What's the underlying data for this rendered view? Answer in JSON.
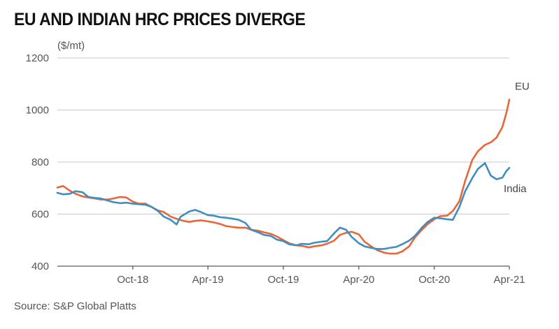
{
  "chart_data": {
    "type": "line",
    "title": "EU AND INDIAN HRC PRICES DIVERGE",
    "ylabel": "($/mt)",
    "xlabel": "",
    "source": "Source: S&P Global Platts",
    "ylim": [
      400,
      1200
    ],
    "yticks": [
      "400",
      "600",
      "800",
      "1000",
      "1200"
    ],
    "xlim": [
      "2018-04-01",
      "2021-04-01"
    ],
    "xticks": [
      {
        "label": "Oct-18",
        "date": "2018-10-01"
      },
      {
        "label": "Apr-19",
        "date": "2019-04-01"
      },
      {
        "label": "Oct-19",
        "date": "2019-10-01"
      },
      {
        "label": "Apr-20",
        "date": "2020-04-01"
      },
      {
        "label": "Oct-20",
        "date": "2020-10-01"
      },
      {
        "label": "Apr-21",
        "date": "2021-04-01"
      }
    ],
    "grid": "horizontal",
    "series": [
      {
        "name": "EU",
        "color": "#e8663a",
        "points": [
          [
            "2018-04-01",
            702
          ],
          [
            "2018-04-15",
            708
          ],
          [
            "2018-05-01",
            690
          ],
          [
            "2018-05-15",
            678
          ],
          [
            "2018-06-01",
            668
          ],
          [
            "2018-06-15",
            664
          ],
          [
            "2018-07-01",
            660
          ],
          [
            "2018-07-15",
            656
          ],
          [
            "2018-08-01",
            656
          ],
          [
            "2018-08-15",
            660
          ],
          [
            "2018-09-01",
            666
          ],
          [
            "2018-09-15",
            664
          ],
          [
            "2018-10-01",
            648
          ],
          [
            "2018-10-15",
            640
          ],
          [
            "2018-11-01",
            640
          ],
          [
            "2018-11-15",
            628
          ],
          [
            "2018-12-01",
            614
          ],
          [
            "2018-12-15",
            608
          ],
          [
            "2019-01-01",
            590
          ],
          [
            "2019-01-15",
            582
          ],
          [
            "2019-02-01",
            574
          ],
          [
            "2019-02-15",
            570
          ],
          [
            "2019-03-01",
            574
          ],
          [
            "2019-03-15",
            576
          ],
          [
            "2019-04-01",
            572
          ],
          [
            "2019-04-15",
            568
          ],
          [
            "2019-05-01",
            562
          ],
          [
            "2019-05-15",
            554
          ],
          [
            "2019-06-01",
            550
          ],
          [
            "2019-06-15",
            548
          ],
          [
            "2019-07-01",
            548
          ],
          [
            "2019-07-15",
            540
          ],
          [
            "2019-08-01",
            536
          ],
          [
            "2019-08-15",
            530
          ],
          [
            "2019-09-01",
            524
          ],
          [
            "2019-09-15",
            514
          ],
          [
            "2019-10-01",
            500
          ],
          [
            "2019-10-15",
            488
          ],
          [
            "2019-11-01",
            480
          ],
          [
            "2019-11-15",
            478
          ],
          [
            "2019-12-01",
            472
          ],
          [
            "2019-12-15",
            476
          ],
          [
            "2020-01-01",
            480
          ],
          [
            "2020-01-15",
            486
          ],
          [
            "2020-02-01",
            498
          ],
          [
            "2020-02-15",
            520
          ],
          [
            "2020-03-01",
            528
          ],
          [
            "2020-03-15",
            532
          ],
          [
            "2020-04-01",
            522
          ],
          [
            "2020-04-15",
            494
          ],
          [
            "2020-05-01",
            476
          ],
          [
            "2020-05-15",
            462
          ],
          [
            "2020-06-01",
            452
          ],
          [
            "2020-06-15",
            448
          ],
          [
            "2020-07-01",
            448
          ],
          [
            "2020-07-15",
            456
          ],
          [
            "2020-08-01",
            476
          ],
          [
            "2020-08-15",
            510
          ],
          [
            "2020-09-01",
            540
          ],
          [
            "2020-09-15",
            562
          ],
          [
            "2020-10-01",
            580
          ],
          [
            "2020-10-15",
            592
          ],
          [
            "2020-11-01",
            594
          ],
          [
            "2020-11-15",
            612
          ],
          [
            "2020-12-01",
            650
          ],
          [
            "2020-12-15",
            728
          ],
          [
            "2021-01-01",
            808
          ],
          [
            "2021-01-15",
            842
          ],
          [
            "2021-02-01",
            866
          ],
          [
            "2021-02-15",
            876
          ],
          [
            "2021-03-01",
            894
          ],
          [
            "2021-03-15",
            934
          ],
          [
            "2021-03-25",
            990
          ],
          [
            "2021-04-01",
            1040
          ]
        ]
      },
      {
        "name": "India",
        "color": "#3f8ec0",
        "points": [
          [
            "2018-04-01",
            682
          ],
          [
            "2018-04-15",
            676
          ],
          [
            "2018-05-01",
            678
          ],
          [
            "2018-05-15",
            688
          ],
          [
            "2018-06-01",
            684
          ],
          [
            "2018-06-15",
            666
          ],
          [
            "2018-07-01",
            662
          ],
          [
            "2018-07-15",
            660
          ],
          [
            "2018-08-01",
            652
          ],
          [
            "2018-08-15",
            646
          ],
          [
            "2018-09-01",
            642
          ],
          [
            "2018-09-15",
            644
          ],
          [
            "2018-10-01",
            640
          ],
          [
            "2018-10-15",
            638
          ],
          [
            "2018-11-01",
            636
          ],
          [
            "2018-11-15",
            628
          ],
          [
            "2018-12-01",
            612
          ],
          [
            "2018-12-15",
            590
          ],
          [
            "2019-01-01",
            578
          ],
          [
            "2019-01-15",
            560
          ],
          [
            "2019-01-25",
            590
          ],
          [
            "2019-02-15",
            610
          ],
          [
            "2019-03-01",
            616
          ],
          [
            "2019-03-15",
            608
          ],
          [
            "2019-04-01",
            596
          ],
          [
            "2019-04-15",
            594
          ],
          [
            "2019-05-01",
            588
          ],
          [
            "2019-05-15",
            586
          ],
          [
            "2019-06-01",
            582
          ],
          [
            "2019-06-15",
            578
          ],
          [
            "2019-07-01",
            566
          ],
          [
            "2019-07-15",
            540
          ],
          [
            "2019-08-01",
            530
          ],
          [
            "2019-08-15",
            520
          ],
          [
            "2019-09-01",
            516
          ],
          [
            "2019-09-15",
            502
          ],
          [
            "2019-10-01",
            496
          ],
          [
            "2019-10-15",
            484
          ],
          [
            "2019-11-01",
            480
          ],
          [
            "2019-11-15",
            486
          ],
          [
            "2019-12-01",
            484
          ],
          [
            "2019-12-15",
            490
          ],
          [
            "2020-01-01",
            494
          ],
          [
            "2020-01-15",
            496
          ],
          [
            "2020-02-01",
            526
          ],
          [
            "2020-02-15",
            548
          ],
          [
            "2020-03-01",
            540
          ],
          [
            "2020-03-15",
            512
          ],
          [
            "2020-04-01",
            488
          ],
          [
            "2020-04-15",
            476
          ],
          [
            "2020-05-01",
            470
          ],
          [
            "2020-05-15",
            466
          ],
          [
            "2020-06-01",
            466
          ],
          [
            "2020-06-15",
            470
          ],
          [
            "2020-07-01",
            474
          ],
          [
            "2020-07-15",
            484
          ],
          [
            "2020-08-01",
            498
          ],
          [
            "2020-08-15",
            516
          ],
          [
            "2020-09-01",
            548
          ],
          [
            "2020-09-15",
            570
          ],
          [
            "2020-10-01",
            586
          ],
          [
            "2020-10-15",
            584
          ],
          [
            "2020-11-01",
            580
          ],
          [
            "2020-11-15",
            578
          ],
          [
            "2020-12-01",
            628
          ],
          [
            "2020-12-15",
            688
          ],
          [
            "2021-01-01",
            738
          ],
          [
            "2021-01-15",
            774
          ],
          [
            "2021-02-01",
            796
          ],
          [
            "2021-02-15",
            748
          ],
          [
            "2021-03-01",
            734
          ],
          [
            "2021-03-15",
            740
          ],
          [
            "2021-03-25",
            766
          ],
          [
            "2021-04-01",
            778
          ]
        ]
      }
    ]
  }
}
